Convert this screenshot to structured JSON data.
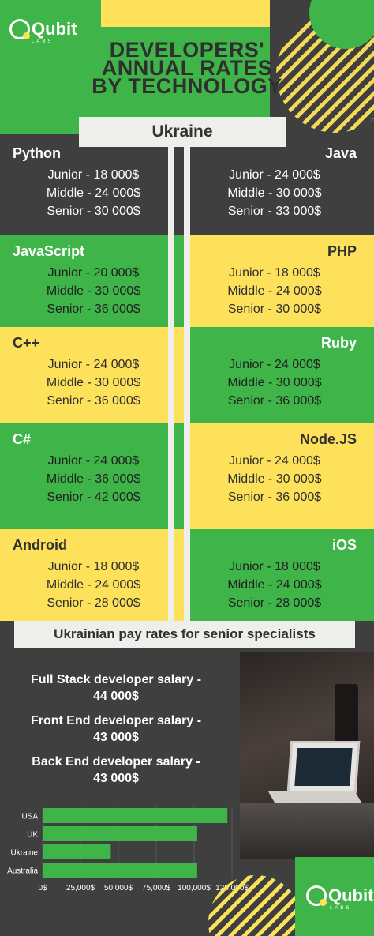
{
  "brand": {
    "logo_text": "Qubit",
    "logo_sub": "LABS"
  },
  "title": {
    "line1": "DEVELOPERS'",
    "line2": "ANNUAL RATES",
    "line3": "BY TECHNOLOGY"
  },
  "country": "Ukraine",
  "technologies": [
    {
      "name": "Python",
      "junior": "Junior - 18 000$",
      "middle": "Middle - 24 000$",
      "senior": "Senior - 30 000$"
    },
    {
      "name": "Java",
      "junior": "Junior - 24 000$",
      "middle": "Middle - 30 000$",
      "senior": "Senior - 33 000$"
    },
    {
      "name": "JavaScript",
      "junior": "Junior - 20 000$",
      "middle": "Middle - 30 000$",
      "senior": "Senior - 36 000$"
    },
    {
      "name": "PHP",
      "junior": "Junior - 18 000$",
      "middle": "Middle - 24 000$",
      "senior": "Senior - 30 000$"
    },
    {
      "name": "C++",
      "junior": "Junior - 24 000$",
      "middle": "Middle - 30 000$",
      "senior": "Senior - 36 000$"
    },
    {
      "name": "Ruby",
      "junior": "Junior - 24 000$",
      "middle": "Middle - 30 000$",
      "senior": "Senior - 36 000$"
    },
    {
      "name": "C#",
      "junior": "Junior - 24 000$",
      "middle": "Middle - 36 000$",
      "senior": "Senior - 42 000$"
    },
    {
      "name": "Node.JS",
      "junior": "Junior - 24 000$",
      "middle": "Middle - 30 000$",
      "senior": "Senior - 36 000$"
    },
    {
      "name": "Android",
      "junior": "Junior - 18 000$",
      "middle": "Middle - 24 000$",
      "senior": "Senior - 28 000$"
    },
    {
      "name": "iOS",
      "junior": "Junior - 18 000$",
      "middle": "Middle - 24 000$",
      "senior": "Senior - 28 000$"
    }
  ],
  "pay_banner": "Ukrainian pay rates for senior specialists",
  "salaries": [
    {
      "line1": "Full Stack developer salary -",
      "line2": "44 000$"
    },
    {
      "line1": "Front End developer salary -",
      "line2": "43 000$"
    },
    {
      "line1": "Back End developer salary -",
      "line2": "43 000$"
    }
  ],
  "colors": {
    "green": "#3fb549",
    "yellow": "#fde15a",
    "dark": "#3f3f3f",
    "light": "#eeeeea"
  },
  "chart_data": {
    "type": "bar",
    "orientation": "horizontal",
    "categories": [
      "USA",
      "UK",
      "Ukraine",
      "Australia"
    ],
    "values": [
      122000,
      102000,
      45000,
      102000
    ],
    "xticks": [
      "0$",
      "25,000$",
      "50,000$",
      "75,000$",
      "100,000$",
      "125,000$"
    ],
    "xlim": [
      0,
      125000
    ],
    "bar_color": "#3fb549",
    "grid": true
  }
}
